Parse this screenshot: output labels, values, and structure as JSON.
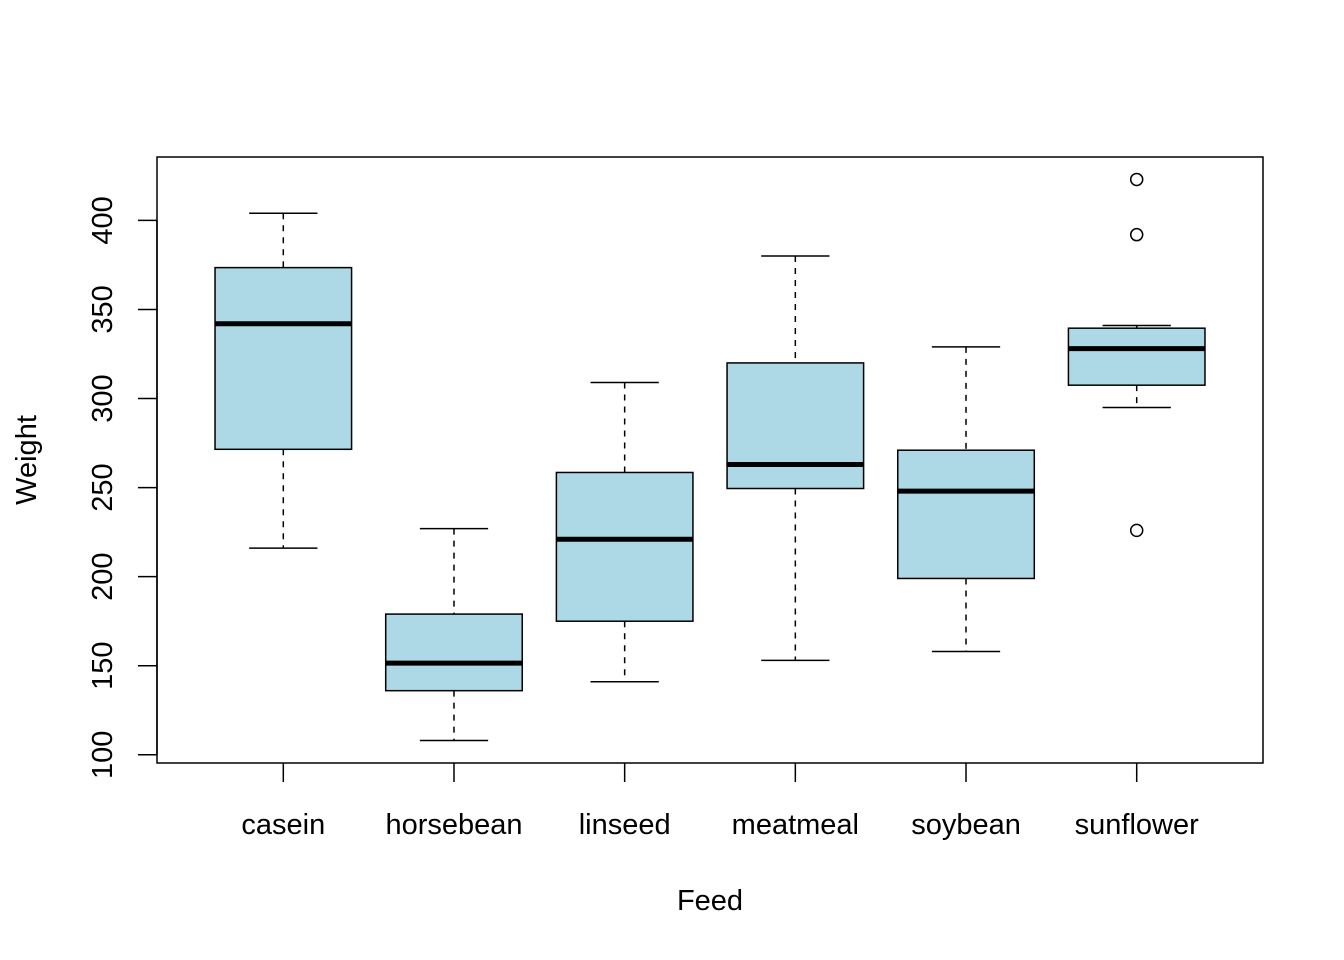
{
  "chart_data": {
    "type": "boxplot",
    "title": "",
    "xlabel": "Feed",
    "ylabel": "Weight",
    "ylim": [
      95.4,
      435.6
    ],
    "yticks": [
      100,
      150,
      200,
      250,
      300,
      350,
      400
    ],
    "grid": false,
    "box_color": "#ADD8E6",
    "categories": [
      "casein",
      "horsebean",
      "linseed",
      "meatmeal",
      "soybean",
      "sunflower"
    ],
    "boxes": [
      {
        "min": 216,
        "q1": 271.5,
        "median": 342,
        "q3": 373.5,
        "max": 404,
        "outliers": []
      },
      {
        "min": 108,
        "q1": 136,
        "median": 151.5,
        "q3": 179,
        "max": 227,
        "outliers": []
      },
      {
        "min": 141,
        "q1": 175,
        "median": 221,
        "q3": 258.5,
        "max": 309,
        "outliers": []
      },
      {
        "min": 153,
        "q1": 249.5,
        "median": 263,
        "q3": 320,
        "max": 380,
        "outliers": []
      },
      {
        "min": 158,
        "q1": 199,
        "median": 248,
        "q3": 271,
        "max": 329,
        "outliers": []
      },
      {
        "min": 295,
        "q1": 307.5,
        "median": 328,
        "q3": 339.5,
        "max": 341,
        "outliers": [
          226,
          392,
          423
        ]
      }
    ]
  }
}
